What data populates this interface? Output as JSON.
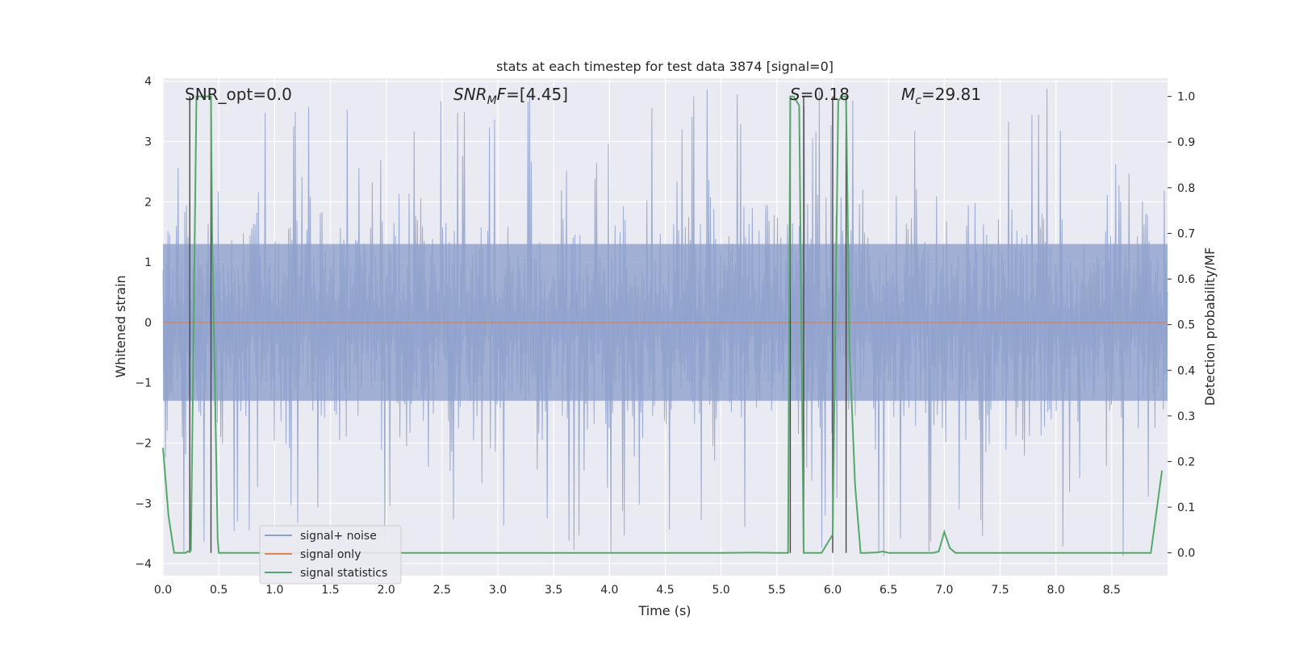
{
  "chart_data": {
    "type": "line",
    "title": "stats at each timestep for test data 3874 [signal=0]",
    "xlabel": "Time (s)",
    "ylabel": "Whitened strain",
    "y2label": "Detection probability/MF",
    "xlim": [
      0.0,
      9.0
    ],
    "ylim": [
      -4.2,
      4.05
    ],
    "y2lim": [
      -0.05,
      1.04
    ],
    "xticks": [
      0.0,
      0.5,
      1.0,
      1.5,
      2.0,
      2.5,
      3.0,
      3.5,
      4.0,
      4.5,
      5.0,
      5.5,
      6.0,
      6.5,
      7.0,
      7.5,
      8.0,
      8.5
    ],
    "yticks": [
      -4,
      -3,
      -2,
      -1,
      0,
      1,
      2,
      3,
      4
    ],
    "y2ticks": [
      0.0,
      0.1,
      0.2,
      0.3,
      0.4,
      0.5,
      0.6,
      0.7,
      0.8,
      0.9,
      1.0
    ],
    "grid": true,
    "legend_position": "lower-left",
    "annotations": [
      {
        "text": "SNR_opt=0.0",
        "x": 0.2
      },
      {
        "text": "SNR_MF=[4.45]",
        "x": 2.6,
        "math": "snrmf"
      },
      {
        "text": "S=0.18",
        "x": 5.62,
        "math": "s"
      },
      {
        "text": "M_c=29.81",
        "x": 6.62,
        "math": "mc"
      }
    ],
    "series": [
      {
        "name": "signal+ noise",
        "color": "#8da0cb",
        "kind": "noise",
        "amplitude_core": 1.3,
        "amplitude_peak": 3.9
      },
      {
        "name": "signal only",
        "color": "#dd8452",
        "values_constant": 0.0
      },
      {
        "name": "signal statistics",
        "color": "#55a868",
        "axis": "right",
        "x": [
          0.0,
          0.05,
          0.1,
          0.2,
          0.24,
          0.25,
          0.3,
          0.35,
          0.42,
          0.43,
          0.44,
          0.49,
          0.5,
          1.0,
          2.0,
          3.0,
          4.0,
          4.5,
          5.0,
          5.3,
          5.5,
          5.55,
          5.6,
          5.62,
          5.65,
          5.7,
          5.74,
          5.75,
          5.78,
          5.8,
          5.85,
          5.9,
          6.0,
          6.05,
          6.08,
          6.12,
          6.15,
          6.2,
          6.25,
          6.3,
          6.4,
          6.45,
          6.5,
          6.6,
          6.8,
          6.9,
          6.95,
          7.0,
          7.05,
          7.1,
          7.2,
          7.5,
          8.0,
          8.5,
          8.85,
          8.95
        ],
        "y": [
          0.23,
          0.08,
          0.0,
          0.0,
          0.005,
          0.005,
          1.0,
          1.0,
          1.0,
          1.0,
          0.7,
          0.03,
          0.0,
          0.0,
          0.0,
          0.0,
          0.0,
          0.0,
          0.0,
          0.0005,
          0.0,
          0.0,
          0.0,
          1.0,
          1.0,
          0.98,
          0.0,
          0.0,
          0.0,
          0.0,
          0.0,
          0.0,
          0.04,
          0.99,
          1.0,
          1.0,
          0.45,
          0.15,
          0.0,
          0.0,
          0.001,
          0.003,
          0.0,
          0.0,
          0.0,
          0.0,
          0.003,
          0.046,
          0.01,
          0.0,
          0.0,
          0.0,
          0.0,
          0.0,
          0.0,
          0.18
        ]
      }
    ],
    "vertical_markers": [
      0.24,
      0.43,
      5.62,
      5.74,
      6.0,
      6.12
    ],
    "colors": {
      "background": "#eaeaf2",
      "grid": "#ffffff",
      "marker": "#444444"
    }
  }
}
